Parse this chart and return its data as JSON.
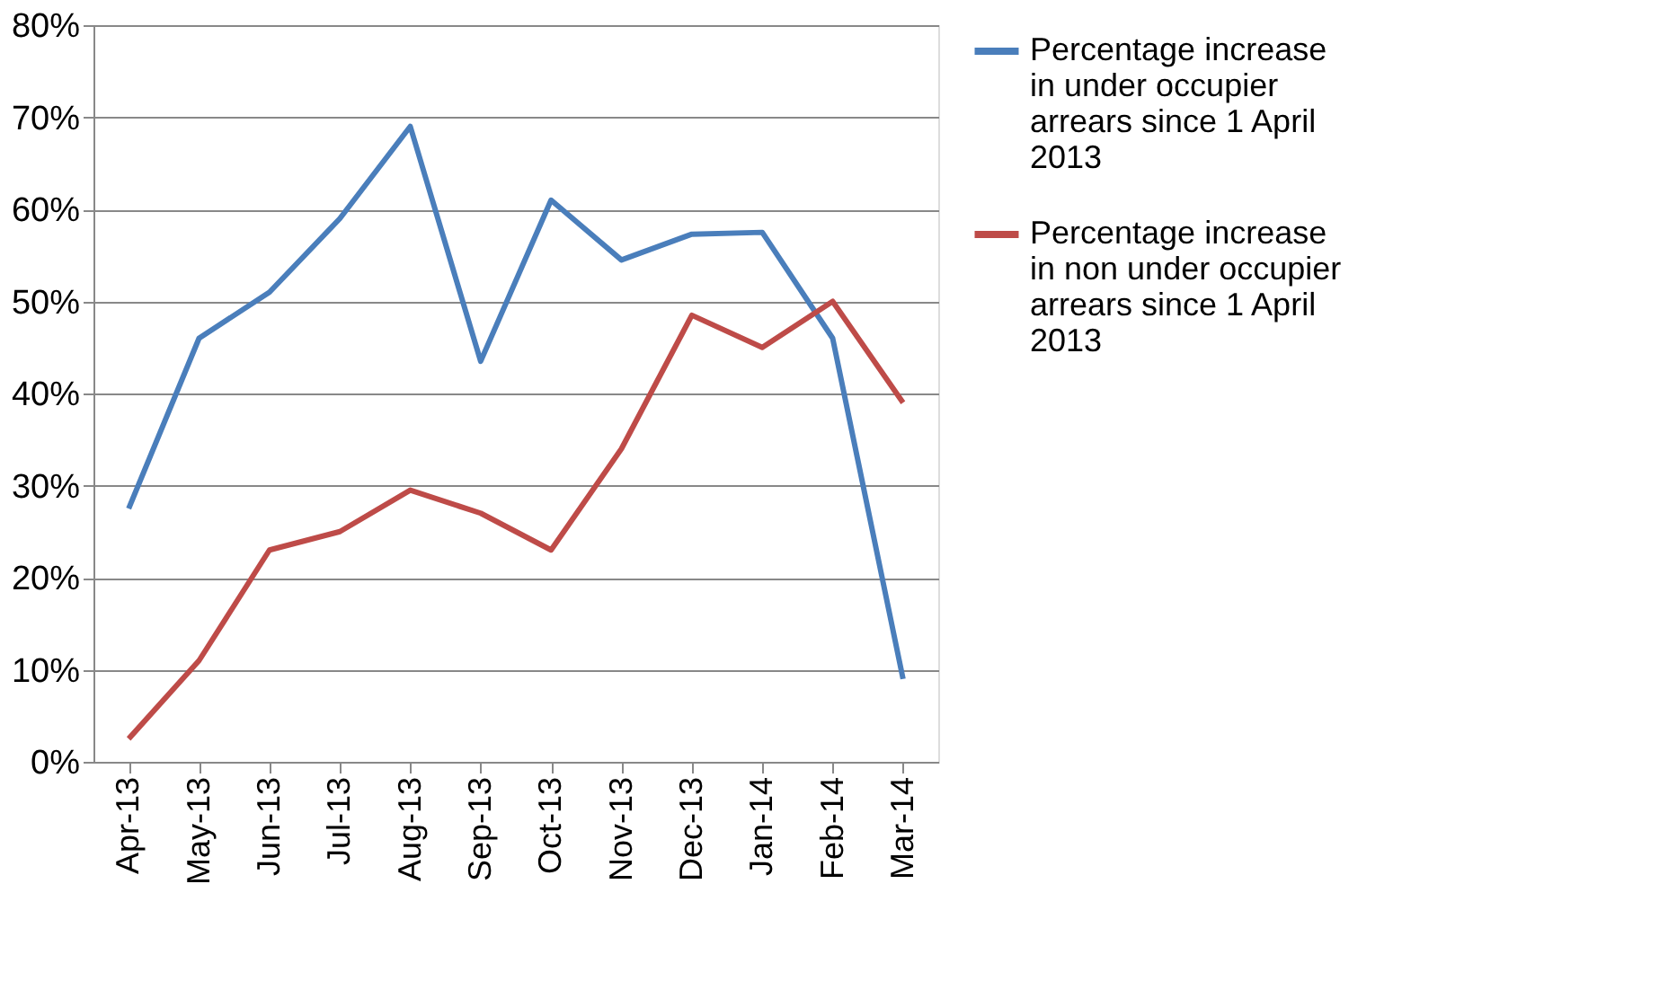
{
  "chart_data": {
    "type": "line",
    "categories": [
      "Apr-13",
      "May-13",
      "Jun-13",
      "Jul-13",
      "Aug-13",
      "Sep-13",
      "Oct-13",
      "Nov-13",
      "Dec-13",
      "Jan-14",
      "Feb-14",
      "Mar-14"
    ],
    "series": [
      {
        "name": "Percentage increase in under occupier arrears since 1 April 2013",
        "color": "#4a7ebb",
        "values": [
          27.5,
          46,
          51,
          59,
          69,
          43.5,
          61,
          54.5,
          57.3,
          57.5,
          46,
          9
        ]
      },
      {
        "name": "Percentage increase in non under occupier arrears since 1 April 2013",
        "color": "#be4b48",
        "values": [
          2.5,
          11,
          23,
          25,
          29.5,
          27,
          23,
          34,
          48.5,
          45,
          50,
          39
        ]
      }
    ],
    "ylim": [
      0,
      80
    ],
    "yticks": [
      {
        "value": 0,
        "label": "0%"
      },
      {
        "value": 10,
        "label": "10%"
      },
      {
        "value": 20,
        "label": "20%"
      },
      {
        "value": 30,
        "label": "30%"
      },
      {
        "value": 40,
        "label": "40%"
      },
      {
        "value": 50,
        "label": "50%"
      },
      {
        "value": 60,
        "label": "60%"
      },
      {
        "value": 70,
        "label": "70%"
      },
      {
        "value": 80,
        "label": "80%"
      }
    ],
    "grid": "y",
    "legend": "right",
    "marker": "none",
    "line_style": "solid"
  }
}
